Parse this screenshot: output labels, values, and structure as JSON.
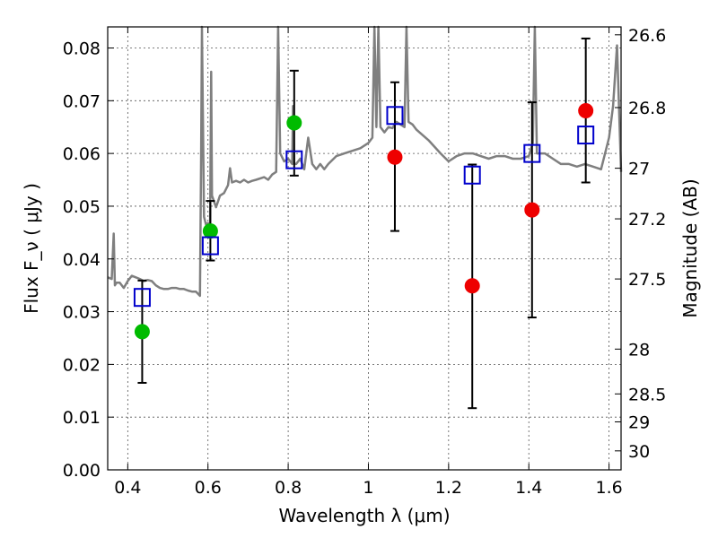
{
  "chart_data": {
    "type": "scatter",
    "title": "",
    "xlabel": "Wavelength λ (μm)",
    "ylabel": "Flux F_ν ( μJy )",
    "y2label": "Magnitude (AB)",
    "xlim": [
      0.35,
      1.63
    ],
    "ylim": [
      0.0,
      0.084
    ],
    "grid": true,
    "x_ticks": [
      0.4,
      0.6,
      0.8,
      1.0,
      1.2,
      1.4,
      1.6
    ],
    "x_tick_labels": [
      "0.4",
      "0.6",
      "0.8",
      "1",
      "1.2",
      "1.4",
      "1.6"
    ],
    "y_ticks": [
      0.0,
      0.01,
      0.02,
      0.03,
      0.04,
      0.05,
      0.06,
      0.07,
      0.08
    ],
    "y_tick_labels": [
      "0.00",
      "0.01",
      "0.02",
      "0.03",
      "0.04",
      "0.05",
      "0.06",
      "0.07",
      "0.08"
    ],
    "y2_ticks": [
      {
        "flux": 0.0825,
        "label": "26.6"
      },
      {
        "flux": 0.0687,
        "label": "26.8"
      },
      {
        "flux": 0.0572,
        "label": "27"
      },
      {
        "flux": 0.0476,
        "label": "27.2"
      },
      {
        "flux": 0.0362,
        "label": "27.5"
      },
      {
        "flux": 0.0229,
        "label": "28"
      },
      {
        "flux": 0.0144,
        "label": "28.5"
      },
      {
        "flux": 0.0091,
        "label": "29"
      },
      {
        "flux": 0.0036,
        "label": "30"
      }
    ],
    "series": [
      {
        "kind": "model_spectrum",
        "color": "#7f7f7f",
        "x": [
          0.35,
          0.36,
          0.365,
          0.368,
          0.372,
          0.38,
          0.39,
          0.4,
          0.41,
          0.42,
          0.43,
          0.44,
          0.45,
          0.46,
          0.47,
          0.48,
          0.49,
          0.5,
          0.51,
          0.52,
          0.53,
          0.54,
          0.55,
          0.56,
          0.57,
          0.58,
          0.583,
          0.585,
          0.59,
          0.595,
          0.6,
          0.605,
          0.608,
          0.61,
          0.62,
          0.63,
          0.64,
          0.65,
          0.655,
          0.66,
          0.67,
          0.68,
          0.69,
          0.7,
          0.71,
          0.72,
          0.74,
          0.75,
          0.76,
          0.77,
          0.775,
          0.78,
          0.79,
          0.8,
          0.81,
          0.812,
          0.815,
          0.82,
          0.83,
          0.84,
          0.85,
          0.86,
          0.87,
          0.88,
          0.89,
          0.9,
          0.92,
          0.94,
          0.96,
          0.98,
          1.0,
          1.01,
          1.015,
          1.02,
          1.025,
          1.03,
          1.04,
          1.05,
          1.06,
          1.07,
          1.08,
          1.09,
          1.095,
          1.1,
          1.11,
          1.12,
          1.15,
          1.18,
          1.2,
          1.22,
          1.24,
          1.26,
          1.28,
          1.3,
          1.32,
          1.34,
          1.36,
          1.38,
          1.4,
          1.41,
          1.415,
          1.42,
          1.44,
          1.46,
          1.48,
          1.5,
          1.52,
          1.54,
          1.56,
          1.58,
          1.6,
          1.61,
          1.62,
          1.63
        ],
        "y": [
          0.0365,
          0.0362,
          0.0448,
          0.035,
          0.0355,
          0.0355,
          0.0345,
          0.0358,
          0.0368,
          0.0365,
          0.0362,
          0.0358,
          0.036,
          0.0358,
          0.035,
          0.0345,
          0.0343,
          0.0343,
          0.0345,
          0.0345,
          0.0343,
          0.0343,
          0.034,
          0.0338,
          0.0338,
          0.033,
          0.06,
          0.084,
          0.048,
          0.0465,
          0.0468,
          0.0448,
          0.0755,
          0.052,
          0.0498,
          0.052,
          0.0525,
          0.054,
          0.0572,
          0.0545,
          0.0548,
          0.0545,
          0.055,
          0.0545,
          0.0548,
          0.055,
          0.0555,
          0.055,
          0.056,
          0.0565,
          0.084,
          0.06,
          0.0585,
          0.059,
          0.058,
          0.069,
          0.058,
          0.058,
          0.059,
          0.057,
          0.063,
          0.058,
          0.057,
          0.058,
          0.057,
          0.058,
          0.0595,
          0.06,
          0.0605,
          0.061,
          0.062,
          0.063,
          0.084,
          0.065,
          0.084,
          0.065,
          0.064,
          0.065,
          0.0648,
          0.066,
          0.0655,
          0.065,
          0.084,
          0.066,
          0.0655,
          0.0645,
          0.0625,
          0.06,
          0.0585,
          0.0595,
          0.06,
          0.06,
          0.0595,
          0.059,
          0.0595,
          0.0595,
          0.059,
          0.059,
          0.0595,
          0.062,
          0.084,
          0.06,
          0.06,
          0.059,
          0.058,
          0.058,
          0.0575,
          0.058,
          0.0575,
          0.057,
          0.063,
          0.069,
          0.0805,
          0.0565
        ]
      },
      {
        "kind": "measurement",
        "marker": "circle",
        "color": "#00bb00",
        "x": [
          0.436,
          0.606,
          0.815
        ],
        "y": [
          0.0262,
          0.0453,
          0.0658
        ],
        "yerr_low": [
          0.0165,
          0.0397,
          0.0558
        ],
        "yerr_high": [
          0.0359,
          0.051,
          0.0757
        ]
      },
      {
        "kind": "measurement",
        "marker": "circle",
        "color": "#ee0000",
        "x": [
          1.066,
          1.259,
          1.408,
          1.542
        ],
        "y": [
          0.0593,
          0.0349,
          0.0493,
          0.0681
        ],
        "yerr_low": [
          0.0453,
          0.0117,
          0.0289,
          0.0545
        ],
        "yerr_high": [
          0.0735,
          0.0579,
          0.0697,
          0.0818
        ]
      },
      {
        "kind": "model_photometry",
        "marker": "open-square",
        "color": "#0000cc",
        "x": [
          0.436,
          0.606,
          0.815,
          1.066,
          1.259,
          1.408,
          1.542
        ],
        "y": [
          0.0327,
          0.0425,
          0.0588,
          0.0672,
          0.0559,
          0.06,
          0.0635
        ]
      }
    ]
  }
}
